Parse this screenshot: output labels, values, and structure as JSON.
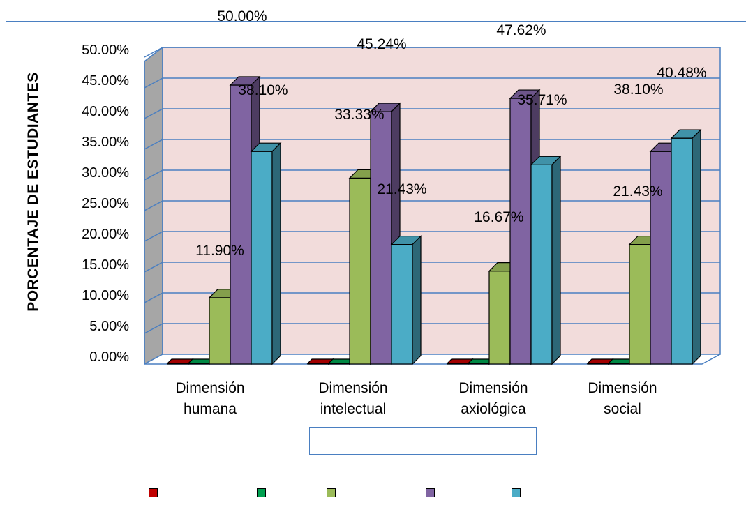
{
  "chart_data": {
    "type": "bar",
    "style": "3d-clustered-column",
    "title": "",
    "xlabel": "",
    "ylabel": "PORCENTAJE DE ESTUDIANTES",
    "ylim": [
      0,
      50
    ],
    "ytick_labels": [
      "0.00%",
      "5.00%",
      "10.00%",
      "15.00%",
      "20.00%",
      "25.00%",
      "30.00%",
      "35.00%",
      "40.00%",
      "45.00%",
      "50.00%"
    ],
    "grid": true,
    "legend_position": "bottom",
    "categories": [
      [
        "Dimensión",
        "humana"
      ],
      [
        "Dimensión",
        "intelectual"
      ],
      [
        "Dimensión",
        "axiológica"
      ],
      [
        "Dimensión",
        "social"
      ]
    ],
    "series": [
      {
        "color": "#c00000",
        "values": [
          0,
          0,
          0,
          0
        ]
      },
      {
        "color": "#00a050",
        "values": [
          0,
          0,
          0,
          0
        ]
      },
      {
        "color": "#9bbb59",
        "values": [
          11.9,
          33.33,
          16.67,
          21.43
        ]
      },
      {
        "color": "#8064a2",
        "values": [
          50.0,
          45.24,
          47.62,
          38.1
        ]
      },
      {
        "color": "#4bacc6",
        "values": [
          38.1,
          21.43,
          35.71,
          40.48
        ]
      }
    ],
    "data_labels": [
      [
        "",
        "",
        "11.90%",
        "50.00%",
        "38.10%"
      ],
      [
        "",
        "",
        "33.33%",
        "45.24%",
        "21.43%"
      ],
      [
        "",
        "",
        "16.67%",
        "47.62%",
        "35.71%"
      ],
      [
        "",
        "",
        "21.43%",
        "38.10%",
        "40.48%"
      ]
    ]
  },
  "colors": {
    "plot_back": "#f2dcdb",
    "plot_side": "#a6a6a6",
    "gridline": "#4a7fc1"
  }
}
